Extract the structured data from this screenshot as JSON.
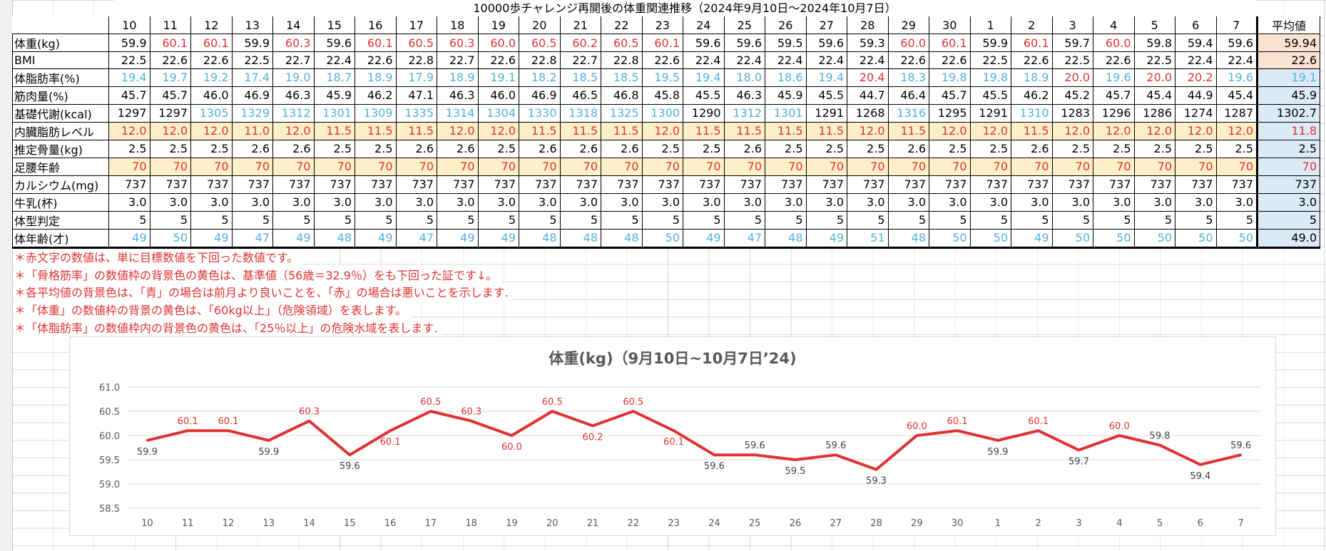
{
  "sheet": {
    "title": "10000歩チャレンジ再開後の体重関連推移（2024年9月10日～2024年10月7日）",
    "avg_header": "平均値",
    "dates": [
      "10",
      "11",
      "12",
      "13",
      "14",
      "15",
      "16",
      "17",
      "18",
      "19",
      "20",
      "21",
      "22",
      "23",
      "24",
      "25",
      "26",
      "27",
      "28",
      "29",
      "30",
      "1",
      "2",
      "3",
      "4",
      "5",
      "6",
      "7"
    ]
  },
  "rows": [
    {
      "label": "体重(kg)",
      "avg": "59.94",
      "avg_bg": "red",
      "values": [
        "59.9",
        "60.1",
        "60.1",
        "59.9",
        "60.3",
        "59.6",
        "60.1",
        "60.5",
        "60.3",
        "60.0",
        "60.5",
        "60.2",
        "60.5",
        "60.1",
        "59.6",
        "59.6",
        "59.5",
        "59.6",
        "59.3",
        "60.0",
        "60.1",
        "59.9",
        "60.1",
        "59.7",
        "60.0",
        "59.8",
        "59.4",
        "59.6"
      ],
      "colors": "bRRbRbRRRRRRRRbbbbbRRbRbRbbb",
      "bg": ""
    },
    {
      "label": "BMI",
      "avg": "22.6",
      "avg_bg": "red",
      "values": [
        "22.5",
        "22.6",
        "22.6",
        "22.5",
        "22.7",
        "22.4",
        "22.6",
        "22.8",
        "22.7",
        "22.6",
        "22.8",
        "22.7",
        "22.8",
        "22.6",
        "22.4",
        "22.4",
        "22.4",
        "22.4",
        "22.4",
        "22.6",
        "22.6",
        "22.5",
        "22.6",
        "22.5",
        "22.6",
        "22.5",
        "22.4",
        "22.4"
      ],
      "colors": "bbbbbbbbbbbbbbbbbbbbbbbbbbbb",
      "bg": ""
    },
    {
      "label": "体脂肪率(%)",
      "avg": "19.1",
      "avg_bg": "blue",
      "values": [
        "19.4",
        "19.7",
        "19.2",
        "17.4",
        "19.0",
        "18.7",
        "18.9",
        "17.9",
        "18.9",
        "19.1",
        "18.2",
        "18.5",
        "18.5",
        "19.5",
        "19.4",
        "18.0",
        "18.6",
        "19.4",
        "20.4",
        "18.3",
        "19.8",
        "19.8",
        "18.9",
        "20.0",
        "19.6",
        "20.0",
        "20.2",
        "19.6"
      ],
      "colors": "BBBBBBBBBBBBBBBBBBRBBBBRBRRB",
      "bg": ""
    },
    {
      "label": "筋肉量(%)",
      "avg": "45.9",
      "avg_bg": "blue",
      "values": [
        "45.7",
        "45.7",
        "46.0",
        "46.9",
        "46.3",
        "45.9",
        "46.2",
        "47.1",
        "46.3",
        "46.0",
        "46.9",
        "46.5",
        "46.8",
        "45.8",
        "45.5",
        "46.3",
        "45.9",
        "45.5",
        "44.7",
        "46.4",
        "45.7",
        "45.5",
        "46.2",
        "45.2",
        "45.7",
        "45.4",
        "44.9",
        "45.4"
      ],
      "colors": "bbbbbbbbbbbbbbbbbbbbbbbbbbbb",
      "bg": ""
    },
    {
      "label": "基礎代謝(kcal)",
      "avg": "1302.7",
      "avg_bg": "blue",
      "values": [
        "1297",
        "1297",
        "1305",
        "1329",
        "1312",
        "1301",
        "1309",
        "1335",
        "1314",
        "1304",
        "1330",
        "1318",
        "1325",
        "1300",
        "1290",
        "1312",
        "1301",
        "1291",
        "1268",
        "1316",
        "1295",
        "1291",
        "1310",
        "1283",
        "1296",
        "1286",
        "1274",
        "1287"
      ],
      "colors": "bbBBBBBBBBBBBBbBBbbBbbBbbbbb",
      "bg": ""
    },
    {
      "label": "内臓脂肪レベル",
      "avg": "11.8",
      "avg_bg": "blue",
      "values": [
        "12.0",
        "12.0",
        "12.0",
        "11.0",
        "12.0",
        "11.5",
        "11.5",
        "11.5",
        "12.0",
        "12.0",
        "11.5",
        "11.5",
        "11.5",
        "12.0",
        "11.5",
        "11.5",
        "11.5",
        "11.5",
        "12.0",
        "11.5",
        "12.0",
        "12.0",
        "11.5",
        "12.0",
        "12.0",
        "12.0",
        "12.0",
        "12.0"
      ],
      "colors": "RRRRRRRRRRRRRRRRRRRRRRRRRRRR",
      "bg": "yellow"
    },
    {
      "label": "推定骨量(kg)",
      "avg": "2.5",
      "avg_bg": "blue",
      "values": [
        "2.5",
        "2.5",
        "2.5",
        "2.6",
        "2.6",
        "2.5",
        "2.5",
        "2.6",
        "2.6",
        "2.5",
        "2.6",
        "2.6",
        "2.6",
        "2.5",
        "2.5",
        "2.6",
        "2.5",
        "2.5",
        "2.5",
        "2.6",
        "2.5",
        "2.5",
        "2.6",
        "2.5",
        "2.5",
        "2.5",
        "2.5",
        "2.5"
      ],
      "colors": "bbbbbbbbbbbbbbbbbbbbbbbbbbbb",
      "bg": ""
    },
    {
      "label": "足腰年齢",
      "avg": "70",
      "avg_bg": "blue",
      "values": [
        "70",
        "70",
        "70",
        "70",
        "70",
        "70",
        "70",
        "70",
        "70",
        "70",
        "70",
        "70",
        "70",
        "70",
        "70",
        "70",
        "70",
        "70",
        "70",
        "70",
        "70",
        "70",
        "70",
        "70",
        "70",
        "70",
        "70",
        "70"
      ],
      "colors": "RRRRRRRRRRRRRRRRRRRRRRRRRRRR",
      "bg": "yellow"
    },
    {
      "label": "カルシウム(mg)",
      "avg": "737",
      "avg_bg": "blue",
      "values": [
        "737",
        "737",
        "737",
        "737",
        "737",
        "737",
        "737",
        "737",
        "737",
        "737",
        "737",
        "737",
        "737",
        "737",
        "737",
        "737",
        "737",
        "737",
        "737",
        "737",
        "737",
        "737",
        "737",
        "737",
        "737",
        "737",
        "737",
        "737"
      ],
      "colors": "bbbbbbbbbbbbbbbbbbbbbbbbbbbb",
      "bg": ""
    },
    {
      "label": "牛乳(杯)",
      "avg": "3.0",
      "avg_bg": "blue",
      "values": [
        "3.0",
        "3.0",
        "3.0",
        "3.0",
        "3.0",
        "3.0",
        "3.0",
        "3.0",
        "3.0",
        "3.0",
        "3.0",
        "3.0",
        "3.0",
        "3.0",
        "3.0",
        "3.0",
        "3.0",
        "3.0",
        "3.0",
        "3.0",
        "3.0",
        "3.0",
        "3.0",
        "3.0",
        "3.0",
        "3.0",
        "3.0",
        "3.0"
      ],
      "colors": "bbbbbbbbbbbbbbbbbbbbbbbbbbbb",
      "bg": ""
    },
    {
      "label": "体型判定",
      "avg": "5",
      "avg_bg": "blue",
      "values": [
        "5",
        "5",
        "5",
        "5",
        "5",
        "5",
        "5",
        "5",
        "5",
        "5",
        "5",
        "5",
        "5",
        "5",
        "5",
        "5",
        "5",
        "5",
        "5",
        "5",
        "5",
        "5",
        "5",
        "5",
        "5",
        "5",
        "5",
        "5"
      ],
      "colors": "bbbbbbbbbbbbbbbbbbbbbbbbbbbb",
      "bg": ""
    },
    {
      "label": "体年齢(才)",
      "avg": "49.0",
      "avg_bg": "blue",
      "values": [
        "49",
        "50",
        "49",
        "47",
        "49",
        "48",
        "49",
        "47",
        "49",
        "49",
        "48",
        "48",
        "48",
        "50",
        "49",
        "47",
        "48",
        "49",
        "51",
        "48",
        "50",
        "50",
        "49",
        "50",
        "50",
        "50",
        "50",
        "50"
      ],
      "colors": "BBBBBBBBBBBBBBBBBBBBBBBBBBBB",
      "bg": ""
    }
  ],
  "notes": [
    "＊赤文字の数値は、単に目標数値を下回った数値です。",
    "＊「骨格筋率」の数値枠の背景色の黄色は、基準値（56歳＝32.9％）をも下回った証です↓。",
    "＊各平均値の背景色は、「青」の場合は前月より良いことを、「赤」の場合は悪いことを示します.",
    "＊「体重」の数値枠の背景の黄色は、「60kg以上」（危険領域）を表します。",
    "＊「体脂肪率」の数値枠内の背景色の黄色は、「25％以上」の危険水域を表します."
  ],
  "colors": {
    "red_text": "#e03232",
    "blue_text": "#4fb1de",
    "yellow_bg": "#fdefc8",
    "avg_red_bg": "#fbe3d2",
    "avg_blue_bg": "#dceaf7",
    "line": "#e03232"
  },
  "chart_data": {
    "type": "line",
    "title": "体重(kg)（9月10日~10月7日’24)",
    "categories": [
      "10",
      "11",
      "12",
      "13",
      "14",
      "15",
      "16",
      "17",
      "18",
      "19",
      "20",
      "21",
      "22",
      "23",
      "24",
      "25",
      "26",
      "27",
      "28",
      "29",
      "30",
      "1",
      "2",
      "3",
      "4",
      "5",
      "6",
      "7"
    ],
    "series": [
      {
        "values": [
          59.9,
          60.1,
          60.1,
          59.9,
          60.3,
          59.6,
          60.1,
          60.5,
          60.3,
          60.0,
          60.5,
          60.2,
          60.5,
          60.1,
          59.6,
          59.6,
          59.5,
          59.6,
          59.3,
          60.0,
          60.1,
          59.9,
          60.1,
          59.7,
          60.0,
          59.8,
          59.4,
          59.6
        ]
      }
    ],
    "data_labels": [
      "59.9",
      "60.1",
      "60.1",
      "59.9",
      "60.3",
      "59.6",
      "60.1",
      "60.5",
      "60.3",
      "60.0",
      "60.5",
      "60.2",
      "60.5",
      "60.1",
      "59.6",
      "59.6",
      "59.5",
      "59.6",
      "59.3",
      "60.0",
      "60.1",
      "59.9",
      "60.1",
      "59.7",
      "60.0",
      "59.8",
      "59.4",
      "59.6"
    ],
    "label_above": [
      false,
      true,
      true,
      false,
      true,
      false,
      false,
      true,
      true,
      false,
      true,
      false,
      true,
      false,
      false,
      true,
      false,
      true,
      false,
      true,
      true,
      false,
      true,
      false,
      true,
      true,
      false,
      true
    ],
    "yticks": [
      "58.5",
      "59.0",
      "59.5",
      "60.0",
      "60.5",
      "61.0"
    ],
    "ylim": [
      58.5,
      61.0
    ],
    "grid": true,
    "legend": "none"
  }
}
